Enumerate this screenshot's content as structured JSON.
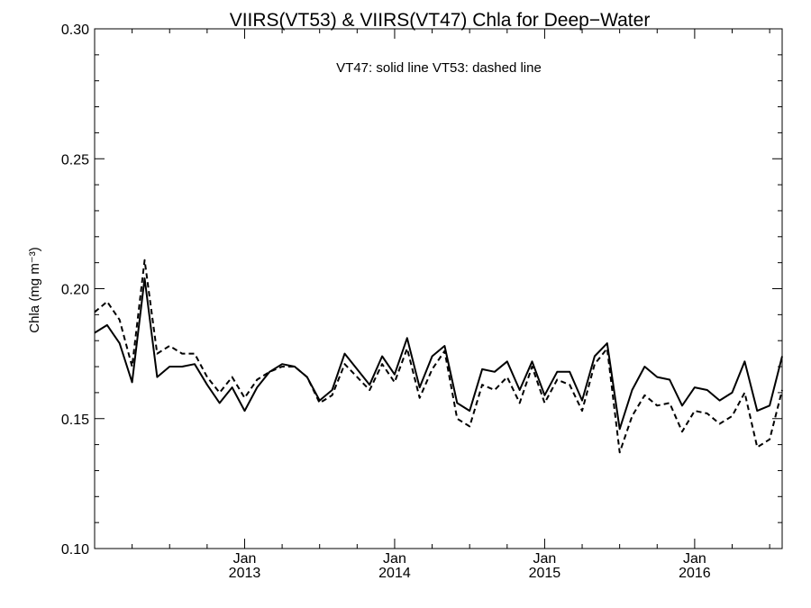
{
  "chart_data": {
    "type": "line",
    "title": "VIIRS(VT53) & VIIRS(VT47)  Chla for Deep−Water",
    "annotation": "VT47: solid line   VT53: dashed line",
    "ylabel": "Chla (mg m⁻³)",
    "xlabel": "",
    "ylim": [
      0.1,
      0.3
    ],
    "y_ticks": [
      "0.10",
      "0.15",
      "0.20",
      "0.25",
      "0.30"
    ],
    "xlim": [
      "2012-01",
      "2016-08"
    ],
    "x_ticks": [
      {
        "month": "2013-01",
        "line1": "Jan",
        "line2": "2013"
      },
      {
        "month": "2014-01",
        "line1": "Jan",
        "line2": "2014"
      },
      {
        "month": "2015-01",
        "line1": "Jan",
        "line2": "2015"
      },
      {
        "month": "2016-01",
        "line1": "Jan",
        "line2": "2016"
      }
    ],
    "grid": false,
    "x": [
      "2012-01",
      "2012-02",
      "2012-03",
      "2012-04",
      "2012-05",
      "2012-06",
      "2012-07",
      "2012-08",
      "2012-09",
      "2012-10",
      "2012-11",
      "2012-12",
      "2013-01",
      "2013-02",
      "2013-03",
      "2013-04",
      "2013-05",
      "2013-06",
      "2013-07",
      "2013-08",
      "2013-09",
      "2013-10",
      "2013-11",
      "2013-12",
      "2014-01",
      "2014-02",
      "2014-03",
      "2014-04",
      "2014-05",
      "2014-06",
      "2014-07",
      "2014-08",
      "2014-09",
      "2014-10",
      "2014-11",
      "2014-12",
      "2015-01",
      "2015-02",
      "2015-03",
      "2015-04",
      "2015-05",
      "2015-06",
      "2015-07",
      "2015-08",
      "2015-09",
      "2015-10",
      "2015-11",
      "2015-12",
      "2016-01",
      "2016-02",
      "2016-03",
      "2016-04",
      "2016-05",
      "2016-06",
      "2016-07",
      "2016-08"
    ],
    "series": [
      {
        "name": "VT47",
        "line_style": "solid",
        "color": "#000000",
        "values": [
          0.183,
          0.186,
          0.179,
          0.164,
          0.204,
          0.166,
          0.17,
          0.17,
          0.171,
          0.163,
          0.156,
          0.162,
          0.153,
          0.162,
          0.168,
          0.171,
          0.17,
          0.166,
          0.157,
          0.161,
          0.175,
          0.169,
          0.163,
          0.174,
          0.167,
          0.181,
          0.162,
          0.174,
          0.178,
          0.156,
          0.153,
          0.169,
          0.168,
          0.172,
          0.161,
          0.172,
          0.159,
          0.168,
          0.168,
          0.157,
          0.174,
          0.179,
          0.146,
          0.161,
          0.17,
          0.166,
          0.165,
          0.155,
          0.162,
          0.161,
          0.157,
          0.16,
          0.172,
          0.153,
          0.155,
          0.174
        ]
      },
      {
        "name": "VT53",
        "line_style": "dashed",
        "color": "#000000",
        "values": [
          0.191,
          0.195,
          0.188,
          0.17,
          0.211,
          0.175,
          0.178,
          0.175,
          0.175,
          0.166,
          0.16,
          0.166,
          0.158,
          0.165,
          0.168,
          0.17,
          0.17,
          0.166,
          0.156,
          0.159,
          0.171,
          0.166,
          0.161,
          0.171,
          0.164,
          0.177,
          0.158,
          0.169,
          0.176,
          0.15,
          0.147,
          0.163,
          0.161,
          0.166,
          0.156,
          0.17,
          0.156,
          0.165,
          0.163,
          0.153,
          0.171,
          0.177,
          0.137,
          0.151,
          0.159,
          0.155,
          0.156,
          0.145,
          0.153,
          0.152,
          0.148,
          0.151,
          0.16,
          0.139,
          0.142,
          0.161
        ]
      }
    ]
  }
}
